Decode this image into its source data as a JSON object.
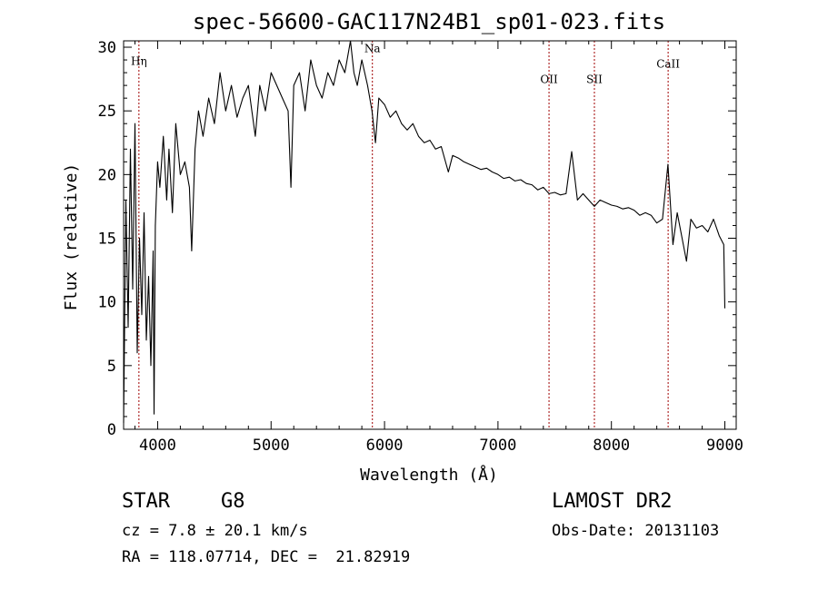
{
  "chart_data": {
    "type": "line",
    "title": "spec-56600-GAC117N24B1_sp01-023.fits",
    "xlabel": "Wavelength (Å)",
    "ylabel": "Flux (relative)",
    "xlim": [
      3700,
      9100
    ],
    "ylim": [
      0,
      30.5
    ],
    "xticks": [
      4000,
      5000,
      6000,
      7000,
      8000,
      9000
    ],
    "yticks": [
      0,
      5,
      10,
      15,
      20,
      25,
      30
    ],
    "grid": false,
    "legend": "none",
    "series": [
      {
        "x": [
          3700,
          3720,
          3740,
          3760,
          3780,
          3800,
          3820,
          3840,
          3860,
          3880,
          3900,
          3920,
          3940,
          3960,
          3968,
          3980,
          4000,
          4020,
          4050,
          4080,
          4100,
          4130,
          4160,
          4200,
          4240,
          4280,
          4300,
          4330,
          4360,
          4400,
          4450,
          4500,
          4550,
          4600,
          4650,
          4700,
          4750,
          4800,
          4861,
          4900,
          4950,
          5000,
          5050,
          5100,
          5150,
          5175,
          5200,
          5250,
          5300,
          5350,
          5400,
          5450,
          5500,
          5550,
          5600,
          5650,
          5700,
          5730,
          5760,
          5800,
          5850,
          5890,
          5920,
          5950,
          6000,
          6050,
          6100,
          6150,
          6200,
          6250,
          6300,
          6350,
          6400,
          6450,
          6500,
          6563,
          6600,
          6650,
          6700,
          6750,
          6800,
          6850,
          6900,
          6950,
          7000,
          7050,
          7100,
          7150,
          7200,
          7250,
          7300,
          7350,
          7400,
          7450,
          7500,
          7550,
          7600,
          7650,
          7700,
          7750,
          7800,
          7850,
          7900,
          7950,
          8000,
          8050,
          8100,
          8150,
          8200,
          8250,
          8300,
          8350,
          8400,
          8450,
          8498,
          8542,
          8580,
          8662,
          8700,
          8750,
          8800,
          8850,
          8900,
          8950,
          8990,
          9000
        ],
        "y": [
          0.5,
          18,
          8,
          22,
          11,
          24,
          6,
          15,
          9,
          17,
          7,
          12,
          5,
          14,
          1.2,
          16,
          21,
          19,
          23,
          18,
          22,
          17,
          24,
          20,
          21,
          19,
          14,
          22,
          25,
          23,
          26,
          24,
          28,
          25,
          27,
          24.5,
          26,
          27,
          23,
          27,
          25,
          28,
          27,
          26,
          25,
          19,
          27,
          28,
          25,
          29,
          27,
          26,
          28,
          27,
          29,
          28,
          30.5,
          28,
          27,
          29,
          27,
          25,
          22.5,
          26,
          25.5,
          24.5,
          25,
          24,
          23.5,
          24,
          23,
          22.5,
          22.7,
          22,
          22.2,
          20.2,
          21.5,
          21.3,
          21,
          20.8,
          20.6,
          20.4,
          20.5,
          20.2,
          20,
          19.7,
          19.8,
          19.5,
          19.6,
          19.3,
          19.2,
          18.8,
          19,
          18.5,
          18.6,
          18.4,
          18.5,
          21.8,
          18,
          18.5,
          18,
          17.5,
          18,
          17.8,
          17.6,
          17.5,
          17.3,
          17.4,
          17.2,
          16.8,
          17,
          16.8,
          16.2,
          16.5,
          20.8,
          14.5,
          17,
          13.2,
          16.5,
          15.8,
          16,
          15.5,
          16.5,
          15.2,
          14.5,
          9.5
        ]
      }
    ],
    "lines": [
      {
        "label": "Hη",
        "wavelength": 3835,
        "y": 28.6
      },
      {
        "label": "Na",
        "wavelength": 5893,
        "y": 29.6
      },
      {
        "label": "OII",
        "wavelength": 7450,
        "y": 27.2
      },
      {
        "label": "SII",
        "wavelength": 7850,
        "y": 27.2
      },
      {
        "label": "CaII",
        "wavelength": 8500,
        "y": 28.4
      }
    ]
  },
  "info": {
    "object_class": "STAR",
    "subclass": "G8",
    "survey": "LAMOST DR2",
    "cz": "cz = 7.8 ± 20.1 km/s",
    "obs_date": "Obs-Date: 20131103",
    "coords": "RA = 118.07714, DEC =  21.82919"
  },
  "colors": {
    "spectrum": "#000000",
    "line_markers": "#a00000"
  }
}
